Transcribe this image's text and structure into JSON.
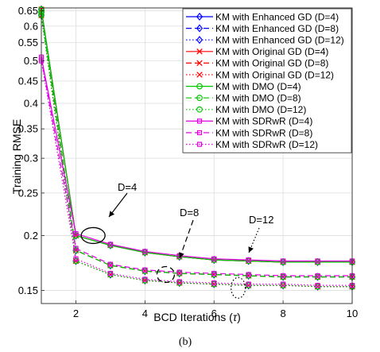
{
  "caption": "(b)",
  "chart_data": {
    "type": "line",
    "xlabel": "BCD Iterations",
    "xlabel_symbol": "τ",
    "ylabel": "Training RMSE",
    "x": [
      1,
      2,
      3,
      4,
      5,
      6,
      7,
      8,
      9,
      10
    ],
    "xlim": [
      1,
      10
    ],
    "ylim": [
      0.14,
      0.66
    ],
    "yscale": "log",
    "xticks": [
      2,
      4,
      6,
      8,
      10
    ],
    "yticks": [
      0.15,
      0.2,
      0.25,
      0.3,
      0.35,
      0.4,
      0.45,
      0.5,
      0.55,
      0.6,
      0.65
    ],
    "ytick_labels": [
      "0.15",
      "0.2",
      "0.25",
      "0.3",
      "0.35",
      "0.4",
      "0.45",
      "0.5",
      "0.55",
      "0.6",
      "0.65"
    ],
    "xtick_labels": [
      "2",
      "4",
      "6",
      "8",
      "10"
    ],
    "grid": true,
    "legend_position": "top-right",
    "series": [
      {
        "name": "KM with Enhanced GD (D=4)",
        "color": "#0000FF",
        "dash": "solid",
        "marker": "diamond",
        "values": [
          0.655,
          0.2,
          0.19,
          0.183,
          0.179,
          0.176,
          0.175,
          0.174,
          0.174,
          0.174
        ]
      },
      {
        "name": "KM with Enhanced GD (D=8)",
        "color": "#0000FF",
        "dash": "dashed",
        "marker": "diamond",
        "values": [
          0.645,
          0.185,
          0.171,
          0.166,
          0.164,
          0.163,
          0.162,
          0.161,
          0.161,
          0.161
        ]
      },
      {
        "name": "KM with Enhanced GD (D=12)",
        "color": "#0000FF",
        "dash": "dotted",
        "marker": "diamond",
        "values": [
          0.635,
          0.175,
          0.163,
          0.158,
          0.156,
          0.155,
          0.154,
          0.154,
          0.153,
          0.153
        ]
      },
      {
        "name": "KM with Original GD (D=4)",
        "color": "#FF0000",
        "dash": "solid",
        "marker": "x",
        "values": [
          0.655,
          0.2,
          0.19,
          0.183,
          0.179,
          0.176,
          0.175,
          0.174,
          0.174,
          0.174
        ]
      },
      {
        "name": "KM with Original GD (D=8)",
        "color": "#FF0000",
        "dash": "dashed",
        "marker": "x",
        "values": [
          0.645,
          0.185,
          0.171,
          0.166,
          0.164,
          0.163,
          0.162,
          0.161,
          0.161,
          0.161
        ]
      },
      {
        "name": "KM with Original GD (D=12)",
        "color": "#FF0000",
        "dash": "dotted",
        "marker": "x",
        "values": [
          0.635,
          0.175,
          0.163,
          0.158,
          0.156,
          0.155,
          0.154,
          0.154,
          0.153,
          0.153
        ]
      },
      {
        "name": "KM with DMO (D=4)",
        "color": "#00C800",
        "dash": "solid",
        "marker": "circle",
        "values": [
          0.655,
          0.2,
          0.19,
          0.183,
          0.179,
          0.176,
          0.175,
          0.174,
          0.174,
          0.174
        ]
      },
      {
        "name": "KM with DMO (D=8)",
        "color": "#00C800",
        "dash": "dashed",
        "marker": "circle",
        "values": [
          0.645,
          0.185,
          0.171,
          0.166,
          0.164,
          0.163,
          0.162,
          0.161,
          0.161,
          0.161
        ]
      },
      {
        "name": "KM with DMO (D=12)",
        "color": "#00C800",
        "dash": "dotted",
        "marker": "circle",
        "values": [
          0.635,
          0.175,
          0.163,
          0.158,
          0.156,
          0.155,
          0.154,
          0.154,
          0.153,
          0.153
        ]
      },
      {
        "name": "KM with SDRwR (D=4)",
        "color": "#E000E0",
        "dash": "solid",
        "marker": "square",
        "values": [
          0.51,
          0.202,
          0.191,
          0.184,
          0.18,
          0.177,
          0.176,
          0.175,
          0.175,
          0.175
        ]
      },
      {
        "name": "KM with SDRwR (D=8)",
        "color": "#E000E0",
        "dash": "dashed",
        "marker": "square",
        "values": [
          0.505,
          0.187,
          0.172,
          0.167,
          0.165,
          0.164,
          0.163,
          0.162,
          0.162,
          0.162
        ]
      },
      {
        "name": "KM with SDRwR (D=12)",
        "color": "#E000E0",
        "dash": "dotted",
        "marker": "square",
        "values": [
          0.5,
          0.177,
          0.164,
          0.159,
          0.157,
          0.156,
          0.155,
          0.155,
          0.154,
          0.154
        ]
      }
    ],
    "annotations": [
      {
        "text": "D=4",
        "x": 2.5,
        "y": 0.2,
        "style": "solid"
      },
      {
        "text": "D=8",
        "x": 4.6,
        "y": 0.163,
        "style": "dashed"
      },
      {
        "text": "D=12",
        "x": 6.7,
        "y": 0.152,
        "style": "dotted"
      }
    ]
  }
}
